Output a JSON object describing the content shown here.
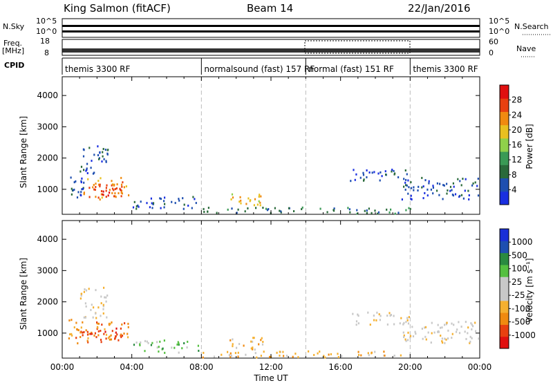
{
  "header": {
    "station": "King Salmon (fitACF)",
    "beam": "Beam 14",
    "date": "22/Jan/2016"
  },
  "panel_labels": {
    "nsky": "N.Sky",
    "nsearch": "N.Search",
    "freq_line1": "Freq.",
    "freq_line2": "[MHz]",
    "nave": "Nave",
    "cpid": "CPID"
  },
  "small_axes": {
    "nsky_left": [
      "10^5",
      "10^0"
    ],
    "nsky_right": [
      "10^5",
      "10^0"
    ],
    "freq_left": [
      "18",
      "8"
    ],
    "nave_right": [
      "60",
      "0"
    ]
  },
  "cpid_segments": [
    {
      "label": "themis 3300 RF",
      "start": 0,
      "end": 8
    },
    {
      "label": "normalsound (fast) 157 RF",
      "start": 8,
      "end": 14
    },
    {
      "label": "normal (fast) 151 RF",
      "start": 14,
      "end": 20
    },
    {
      "label": "themis 3300 RF",
      "start": 20,
      "end": 24
    }
  ],
  "colors": {
    "power_scale": [
      "#1a2fe0",
      "#1e4fb0",
      "#2a6a3a",
      "#3a9a55",
      "#8fd04a",
      "#e8c020",
      "#f08a10",
      "#e84010",
      "#e01010"
    ],
    "velocity_scale": [
      "#e01010",
      "#e84010",
      "#f08a10",
      "#f5b030",
      "#c8c8c8",
      "#c8c8c8",
      "#55c040",
      "#2a8a40",
      "#1e4fb0",
      "#1a2fd8"
    ]
  },
  "chart_data": [
    {
      "type": "heatmap",
      "title": "",
      "ylabel": "Slant Range [km]",
      "xlabel": "",
      "x_ticks": [
        "00:00",
        "04:00",
        "08:00",
        "12:00",
        "16:00",
        "20:00",
        "00:00"
      ],
      "y_ticks": [
        1000,
        2000,
        3000,
        4000
      ],
      "ylim": [
        200,
        4600
      ],
      "xlim_hours": [
        0,
        24
      ],
      "colorbar": {
        "label": "Power [dB]",
        "ticks": [
          4,
          8,
          12,
          16,
          20,
          24,
          28
        ]
      },
      "patches": [
        {
          "t0": 0.3,
          "t1": 1.2,
          "r0": 700,
          "r1": 1500,
          "level": 1
        },
        {
          "t0": 1.2,
          "t1": 3.9,
          "r0": 700,
          "r1": 1400,
          "level": 6
        },
        {
          "t0": 1.6,
          "t1": 3.4,
          "r0": 800,
          "r1": 1200,
          "level": 7
        },
        {
          "t0": 1.0,
          "t1": 2.6,
          "r0": 1500,
          "r1": 2500,
          "level": 1
        },
        {
          "t0": 4.0,
          "t1": 7.8,
          "r0": 400,
          "r1": 800,
          "level": 1
        },
        {
          "t0": 8.0,
          "t1": 20.0,
          "r0": 250,
          "r1": 450,
          "level": 2
        },
        {
          "t0": 9.5,
          "t1": 11.5,
          "r0": 500,
          "r1": 900,
          "level": 5
        },
        {
          "t0": 16.5,
          "t1": 20.0,
          "r0": 1300,
          "r1": 1700,
          "level": 1
        },
        {
          "t0": 19.5,
          "t1": 24.0,
          "r0": 700,
          "r1": 1400,
          "level": 1
        }
      ]
    },
    {
      "type": "heatmap",
      "title": "",
      "ylabel": "Slant Range [km]",
      "xlabel": "Time UT",
      "x_ticks": [
        "00:00",
        "04:00",
        "08:00",
        "12:00",
        "16:00",
        "20:00",
        "00:00"
      ],
      "y_ticks": [
        1000,
        2000,
        3000,
        4000
      ],
      "ylim": [
        200,
        4600
      ],
      "xlim_hours": [
        0,
        24
      ],
      "colorbar": {
        "label": "Velocity [m s⁻¹]",
        "ticks": [
          -1000,
          -500,
          -100,
          -25,
          25,
          100,
          500,
          1000
        ]
      },
      "patches": [
        {
          "t0": 0.3,
          "t1": 1.2,
          "r0": 700,
          "r1": 1500,
          "level": 2
        },
        {
          "t0": 1.2,
          "t1": 3.9,
          "r0": 700,
          "r1": 1400,
          "level": 2
        },
        {
          "t0": 1.6,
          "t1": 3.4,
          "r0": 800,
          "r1": 1200,
          "level": 1
        },
        {
          "t0": 1.0,
          "t1": 2.6,
          "r0": 1500,
          "r1": 2500,
          "level": 4
        },
        {
          "t0": 4.0,
          "t1": 7.8,
          "r0": 400,
          "r1": 800,
          "level": 6
        },
        {
          "t0": 8.0,
          "t1": 20.0,
          "r0": 250,
          "r1": 450,
          "level": 3
        },
        {
          "t0": 9.5,
          "t1": 11.5,
          "r0": 500,
          "r1": 900,
          "level": 3
        },
        {
          "t0": 16.5,
          "t1": 20.0,
          "r0": 1300,
          "r1": 1700,
          "level": 4
        },
        {
          "t0": 19.5,
          "t1": 24.0,
          "r0": 700,
          "r1": 1400,
          "level": 4
        }
      ]
    }
  ]
}
